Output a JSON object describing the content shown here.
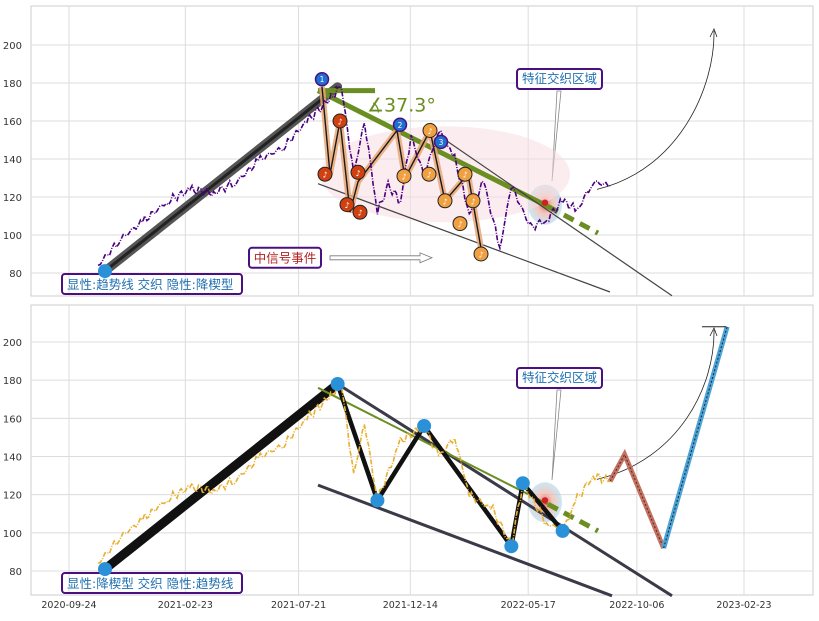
{
  "chart_data": [
    {
      "type": "line",
      "panel": "top",
      "yticks": [
        80,
        100,
        120,
        140,
        160,
        180,
        200
      ],
      "ylim": [
        68,
        218
      ],
      "xticks": [
        "2020-09-24",
        "2021-02-23",
        "2021-07-21",
        "2021-12-14",
        "2022-05-17",
        "2022-10-06",
        "2023-02-23"
      ],
      "grid": true,
      "price_color": "#4b0082",
      "label_box": "显性:趋势线 交织 隐性:降楔型",
      "event_label": "中信号事件",
      "zone_label": "特征交织区域",
      "angle_label": "∡37.3°",
      "trend_points": [
        {
          "x": "2020-11-10",
          "y": 81
        },
        {
          "x": "2021-09-10",
          "y": 178
        }
      ],
      "wave_markers": [
        "1",
        "2",
        "3"
      ],
      "series": [
        {
          "values": [
            {
              "x": "2020-11-01",
              "y": 84
            },
            {
              "x": "2020-12-01",
              "y": 98
            },
            {
              "x": "2021-01-01",
              "y": 108
            },
            {
              "x": "2021-02-01",
              "y": 118
            },
            {
              "x": "2021-03-01",
              "y": 124
            },
            {
              "x": "2021-04-01",
              "y": 122
            },
            {
              "x": "2021-05-01",
              "y": 128
            },
            {
              "x": "2021-06-01",
              "y": 140
            },
            {
              "x": "2021-07-01",
              "y": 146
            },
            {
              "x": "2021-08-01",
              "y": 160
            },
            {
              "x": "2021-09-01",
              "y": 172
            },
            {
              "x": "2021-09-15",
              "y": 178
            },
            {
              "x": "2021-10-01",
              "y": 132
            },
            {
              "x": "2021-10-15",
              "y": 160
            },
            {
              "x": "2021-11-01",
              "y": 112
            },
            {
              "x": "2021-11-15",
              "y": 126
            },
            {
              "x": "2021-12-01",
              "y": 118
            },
            {
              "x": "2021-12-15",
              "y": 152
            },
            {
              "x": "2022-01-01",
              "y": 131
            },
            {
              "x": "2022-01-20",
              "y": 155
            },
            {
              "x": "2022-02-10",
              "y": 140
            },
            {
              "x": "2022-03-01",
              "y": 112
            },
            {
              "x": "2022-03-20",
              "y": 128
            },
            {
              "x": "2022-04-10",
              "y": 93
            },
            {
              "x": "2022-04-25",
              "y": 126
            },
            {
              "x": "2022-05-20",
              "y": 104
            },
            {
              "x": "2022-06-10",
              "y": 108
            },
            {
              "x": "2022-07-01",
              "y": 118
            },
            {
              "x": "2022-07-20",
              "y": 113
            },
            {
              "x": "2022-08-10",
              "y": 128
            },
            {
              "x": "2022-09-01",
              "y": 126
            }
          ]
        }
      ]
    },
    {
      "type": "line",
      "panel": "bottom",
      "yticks": [
        80,
        100,
        120,
        140,
        160,
        180,
        200
      ],
      "ylim": [
        68,
        218
      ],
      "xticks": [
        "2020-09-24",
        "2021-02-23",
        "2021-07-21",
        "2021-12-14",
        "2022-05-17",
        "2022-10-06",
        "2023-02-23"
      ],
      "grid": true,
      "price_color": "#e8b030",
      "label_box": "显性:降楔型 交织 隐性:趋势线",
      "zone_label": "特征交织区域",
      "pivot_points": [
        {
          "x": "2020-11-10",
          "y": 81
        },
        {
          "x": "2021-09-10",
          "y": 178
        },
        {
          "x": "2021-11-01",
          "y": 117
        },
        {
          "x": "2022-01-01",
          "y": 156
        },
        {
          "x": "2022-04-25",
          "y": 93
        },
        {
          "x": "2022-05-10",
          "y": 126
        },
        {
          "x": "2022-07-01",
          "y": 101
        }
      ],
      "projection": [
        {
          "x": "2022-09-01",
          "y": 127
        },
        {
          "x": "2022-09-20",
          "y": 141
        },
        {
          "x": "2022-11-10",
          "y": 92
        },
        {
          "x": "2023-02-01",
          "y": 208
        }
      ],
      "series": [
        {
          "values": [
            {
              "x": "2020-11-01",
              "y": 84
            },
            {
              "x": "2020-12-01",
              "y": 98
            },
            {
              "x": "2021-01-01",
              "y": 108
            },
            {
              "x": "2021-02-01",
              "y": 118
            },
            {
              "x": "2021-03-01",
              "y": 124
            },
            {
              "x": "2021-04-01",
              "y": 122
            },
            {
              "x": "2021-05-01",
              "y": 128
            },
            {
              "x": "2021-06-01",
              "y": 140
            },
            {
              "x": "2021-07-01",
              "y": 146
            },
            {
              "x": "2021-08-01",
              "y": 160
            },
            {
              "x": "2021-09-01",
              "y": 172
            },
            {
              "x": "2021-09-15",
              "y": 178
            },
            {
              "x": "2021-10-01",
              "y": 130
            },
            {
              "x": "2021-10-15",
              "y": 158
            },
            {
              "x": "2021-11-01",
              "y": 117
            },
            {
              "x": "2021-12-01",
              "y": 148
            },
            {
              "x": "2022-01-01",
              "y": 156
            },
            {
              "x": "2022-01-20",
              "y": 140
            },
            {
              "x": "2022-02-10",
              "y": 150
            },
            {
              "x": "2022-03-01",
              "y": 120
            },
            {
              "x": "2022-04-01",
              "y": 112
            },
            {
              "x": "2022-04-25",
              "y": 93
            },
            {
              "x": "2022-05-10",
              "y": 126
            },
            {
              "x": "2022-06-10",
              "y": 105
            },
            {
              "x": "2022-07-01",
              "y": 101
            },
            {
              "x": "2022-07-20",
              "y": 118
            },
            {
              "x": "2022-08-10",
              "y": 130
            },
            {
              "x": "2022-09-01",
              "y": 127
            }
          ]
        }
      ]
    }
  ]
}
